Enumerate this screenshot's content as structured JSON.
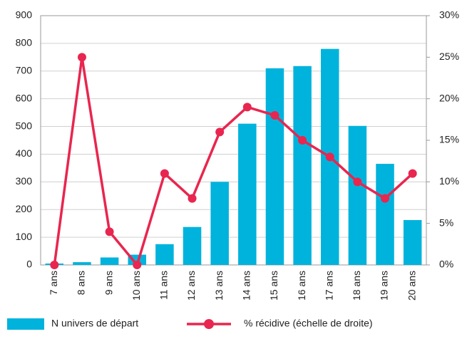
{
  "chart_data": {
    "type": "bar",
    "categories": [
      "7 ans",
      "8 ans",
      "9 ans",
      "10 ans",
      "11 ans",
      "12 ans",
      "13 ans",
      "14 ans",
      "15 ans",
      "16 ans",
      "17 ans",
      "18 ans",
      "19 ans",
      "20 ans"
    ],
    "series": [
      {
        "name": "N univers de départ",
        "type": "bar",
        "color": "#00b3dc",
        "values": [
          5,
          10,
          27,
          37,
          75,
          137,
          300,
          510,
          710,
          718,
          780,
          502,
          365,
          162
        ]
      },
      {
        "name": "% récidive (échelle de droite)",
        "type": "line",
        "axis": "y2",
        "color": "#e8264f",
        "values": [
          0,
          25,
          4,
          0,
          11,
          8,
          16,
          19,
          18,
          15,
          13,
          10,
          8,
          11
        ]
      }
    ],
    "ylim": [
      0,
      900
    ],
    "yticks": [
      0,
      100,
      200,
      300,
      400,
      500,
      600,
      700,
      800,
      900
    ],
    "y2lim": [
      0,
      30
    ],
    "y2ticks": [
      {
        "value": 0,
        "label": "0%"
      },
      {
        "value": 5,
        "label": "5%"
      },
      {
        "value": 10,
        "label": "10%"
      },
      {
        "value": 15,
        "label": "15%"
      },
      {
        "value": 20,
        "label": "20%"
      },
      {
        "value": 25,
        "label": "25%"
      },
      {
        "value": 30,
        "label": "30%"
      }
    ],
    "grid": true
  }
}
